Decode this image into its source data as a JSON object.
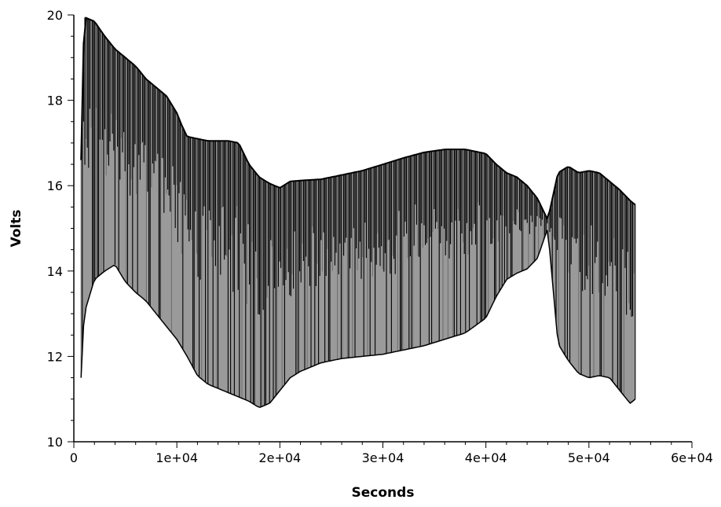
{
  "chart_data": {
    "type": "area",
    "title": "",
    "xlabel": "Seconds",
    "ylabel": "Volts",
    "xlim": [
      0,
      60000
    ],
    "ylim": [
      10,
      20
    ],
    "x_ticks": [
      0,
      10000,
      20000,
      30000,
      40000,
      50000,
      60000
    ],
    "x_tick_labels": [
      "0",
      "1e+04",
      "2e+04",
      "3e+04",
      "4e+04",
      "5e+04",
      "6e+04"
    ],
    "y_ticks": [
      10,
      12,
      14,
      16,
      18,
      20
    ],
    "y_tick_labels": [
      "10",
      "12",
      "14",
      "16",
      "18",
      "20"
    ],
    "grid": false,
    "legend": "none",
    "series": [
      {
        "style": "oscillating voltage trace, rendered as dense vertical strokes (gray fill, black stroke)",
        "upper_envelope": {
          "x": [
            700,
            1000,
            2000,
            3000,
            4000,
            5000,
            6000,
            7000,
            8000,
            9000,
            10000,
            10500,
            11000,
            12000,
            13000,
            14000,
            15000,
            16000,
            17000,
            18000,
            19000,
            20000,
            21000,
            22000,
            24000,
            26000,
            28000,
            30000,
            32000,
            34000,
            36000,
            38000,
            40000,
            41000,
            42000,
            43000,
            44000,
            45000,
            46000,
            47000,
            48000,
            49000,
            50000,
            51000,
            52000,
            53000,
            54000,
            54500
          ],
          "y": [
            16.6,
            19.95,
            19.85,
            19.5,
            19.2,
            19.0,
            18.8,
            18.5,
            18.3,
            18.1,
            17.7,
            17.4,
            17.15,
            17.1,
            17.05,
            17.05,
            17.05,
            17.0,
            16.5,
            16.2,
            16.05,
            15.95,
            16.1,
            16.12,
            16.15,
            16.25,
            16.35,
            16.5,
            16.65,
            16.78,
            16.85,
            16.85,
            16.75,
            16.5,
            16.3,
            16.2,
            16.0,
            15.7,
            15.2,
            16.3,
            16.45,
            16.3,
            16.35,
            16.3,
            16.1,
            15.9,
            15.65,
            15.55
          ]
        },
        "lower_envelope": {
          "x": [
            700,
            1000,
            2000,
            3000,
            4000,
            5000,
            6000,
            7000,
            8000,
            9000,
            10000,
            11000,
            12000,
            13000,
            14000,
            15000,
            16000,
            17000,
            18000,
            19000,
            20000,
            21000,
            22000,
            24000,
            26000,
            28000,
            30000,
            32000,
            34000,
            36000,
            38000,
            40000,
            41000,
            42000,
            43000,
            44000,
            45000,
            46000,
            47000,
            48000,
            49000,
            50000,
            51000,
            52000,
            53000,
            54000,
            54500
          ],
          "y": [
            11.5,
            13.0,
            13.8,
            14.0,
            14.15,
            13.75,
            13.5,
            13.3,
            13.0,
            12.7,
            12.4,
            12.0,
            11.55,
            11.35,
            11.25,
            11.15,
            11.05,
            10.95,
            10.8,
            10.9,
            11.2,
            11.5,
            11.65,
            11.85,
            11.95,
            12.0,
            12.05,
            12.15,
            12.25,
            12.4,
            12.55,
            12.9,
            13.4,
            13.8,
            13.95,
            14.05,
            14.3,
            15.0,
            12.3,
            11.9,
            11.6,
            11.5,
            11.55,
            11.5,
            11.2,
            10.9,
            11.0
          ]
        }
      }
    ]
  }
}
